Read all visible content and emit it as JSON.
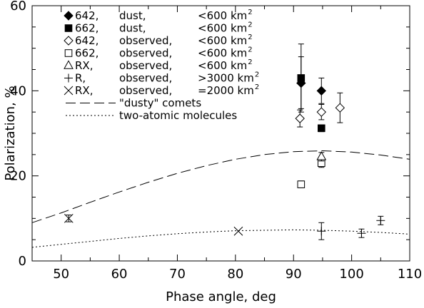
{
  "chart_data": {
    "type": "scatter",
    "xlabel": "Phase angle, deg",
    "ylabel": "Polarization, %",
    "xlim": [
      45,
      110
    ],
    "ylim": [
      0,
      60
    ],
    "x_ticks": [
      50,
      60,
      70,
      80,
      90,
      100,
      110
    ],
    "y_ticks": [
      0,
      20,
      40,
      60
    ],
    "grid": false,
    "legend_position": "top-left",
    "series": [
      {
        "legend": {
          "code": "642,",
          "kind": "dust,",
          "size_prefix": "<600 km",
          "exp": "2"
        },
        "marker": "diamond-filled",
        "points": [
          {
            "x": 91.3,
            "y": 41.8,
            "err_low": 6.0,
            "err_high": 6.2
          },
          {
            "x": 94.8,
            "y": 40.0,
            "err_low": 3.0,
            "err_high": 3.0
          }
        ]
      },
      {
        "legend": {
          "code": "662,",
          "kind": "dust,",
          "size_prefix": "<600 km",
          "exp": "2"
        },
        "marker": "square-filled",
        "points": [
          {
            "x": 91.3,
            "y": 43.0,
            "err_low": 8.0,
            "err_high": 8.0
          },
          {
            "x": 94.8,
            "y": 31.2,
            "err_low": 0.8,
            "err_high": 0.8
          }
        ]
      },
      {
        "legend": {
          "code": "642,",
          "kind": "observed,",
          "size_prefix": "<600 km",
          "exp": "2"
        },
        "marker": "diamond-open",
        "points": [
          {
            "x": 91.1,
            "y": 33.5,
            "err_low": 2.0,
            "err_high": 2.0
          },
          {
            "x": 94.8,
            "y": 35.0,
            "err_low": 1.8,
            "err_high": 1.8
          },
          {
            "x": 98.0,
            "y": 36.0,
            "err_low": 3.5,
            "err_high": 3.5
          }
        ]
      },
      {
        "legend": {
          "code": "662,",
          "kind": "observed,",
          "size_prefix": "<600 km",
          "exp": "2"
        },
        "marker": "square-open",
        "points": [
          {
            "x": 91.3,
            "y": 18.0,
            "err_low": 0.8,
            "err_high": 0.8
          },
          {
            "x": 94.8,
            "y": 23.0,
            "err_low": 1.0,
            "err_high": 1.0
          }
        ]
      },
      {
        "legend": {
          "code": "RX,",
          "kind": "observed,",
          "size_prefix": "<600 km",
          "exp": "2"
        },
        "marker": "triangle-open",
        "points": [
          {
            "x": 94.8,
            "y": 24.5,
            "err_low": 1.0,
            "err_high": 1.0
          }
        ]
      },
      {
        "legend": {
          "code": "R,",
          "kind": "observed,",
          "size_prefix": ">3000 km",
          "exp": "2"
        },
        "marker": "plus",
        "points": [
          {
            "x": 94.8,
            "y": 7.0,
            "err_low": 2.0,
            "err_high": 2.0
          },
          {
            "x": 101.7,
            "y": 6.5,
            "err_low": 1.0,
            "err_high": 1.0
          },
          {
            "x": 105.0,
            "y": 9.5,
            "err_low": 1.0,
            "err_high": 1.0
          }
        ]
      },
      {
        "legend": {
          "code": "RX,",
          "kind": "observed,",
          "size_prefix": "=2000 km",
          "exp": "2"
        },
        "marker": "x",
        "points": [
          {
            "x": 51.3,
            "y": 10.0,
            "err_low": 0.8,
            "err_high": 0.8
          },
          {
            "x": 80.5,
            "y": 7.0,
            "err_low": 0,
            "err_high": 0
          }
        ]
      }
    ],
    "curves": [
      {
        "legend": "\"dusty\" comets",
        "style": "dashed",
        "points": [
          [
            45,
            9.0
          ],
          [
            50,
            11.3
          ],
          [
            55,
            13.8
          ],
          [
            60,
            16.2
          ],
          [
            65,
            18.5
          ],
          [
            70,
            20.6
          ],
          [
            75,
            22.4
          ],
          [
            80,
            23.9
          ],
          [
            85,
            25.0
          ],
          [
            90,
            25.7
          ],
          [
            95,
            25.9
          ],
          [
            100,
            25.6
          ],
          [
            105,
            24.9
          ],
          [
            110,
            23.9
          ]
        ]
      },
      {
        "legend": "two-atomic molecules",
        "style": "dotted",
        "points": [
          [
            45,
            3.2
          ],
          [
            50,
            3.9
          ],
          [
            55,
            4.6
          ],
          [
            60,
            5.3
          ],
          [
            65,
            5.9
          ],
          [
            70,
            6.4
          ],
          [
            75,
            6.8
          ],
          [
            80,
            7.1
          ],
          [
            85,
            7.2
          ],
          [
            90,
            7.3
          ],
          [
            95,
            7.2
          ],
          [
            100,
            7.0
          ],
          [
            105,
            6.7
          ],
          [
            110,
            6.3
          ]
        ]
      }
    ]
  }
}
